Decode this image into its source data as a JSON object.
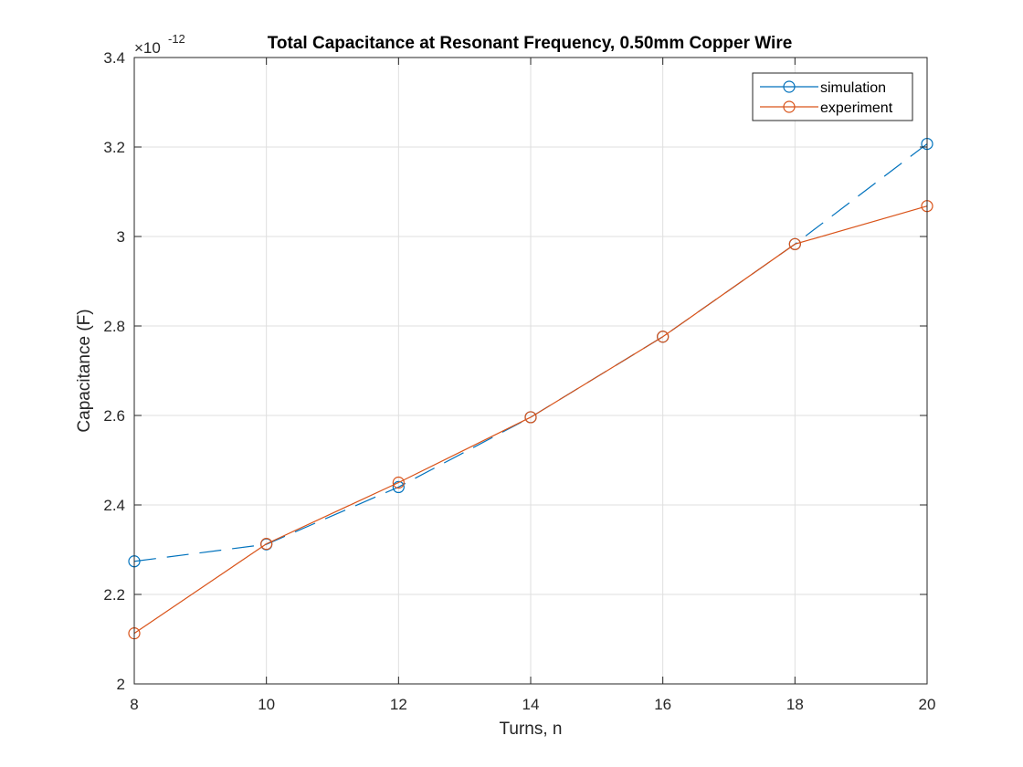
{
  "chart_data": {
    "type": "line",
    "title": "Total Capacitance at Resonant Frequency, 0.50mm Copper Wire",
    "xlabel": "Turns, n",
    "ylabel": "Capacitance (F)",
    "y_exponent_base": "×10",
    "y_exponent_power": "-12",
    "xlim": [
      8,
      20
    ],
    "ylim": [
      2.0,
      3.4
    ],
    "xticks": [
      "8",
      "10",
      "12",
      "14",
      "16",
      "18",
      "20"
    ],
    "yticks": [
      "2",
      "2.2",
      "2.4",
      "2.6",
      "2.8",
      "3",
      "3.2",
      "3.4"
    ],
    "grid": true,
    "legend_location": "top-right",
    "series": [
      {
        "name": "simulation",
        "line_style": "dashed",
        "marker": "circle",
        "color": "#0072BD",
        "x": [
          8,
          10,
          12,
          14,
          16,
          18,
          20
        ],
        "y": [
          2.274,
          2.312,
          2.44,
          2.596,
          2.776,
          2.983,
          3.207
        ]
      },
      {
        "name": "experiment",
        "line_style": "solid",
        "marker": "circle",
        "color": "#D95319",
        "x": [
          8,
          10,
          12,
          14,
          16,
          18,
          20
        ],
        "y": [
          2.113,
          2.313,
          2.45,
          2.596,
          2.776,
          2.983,
          3.068
        ]
      }
    ]
  }
}
